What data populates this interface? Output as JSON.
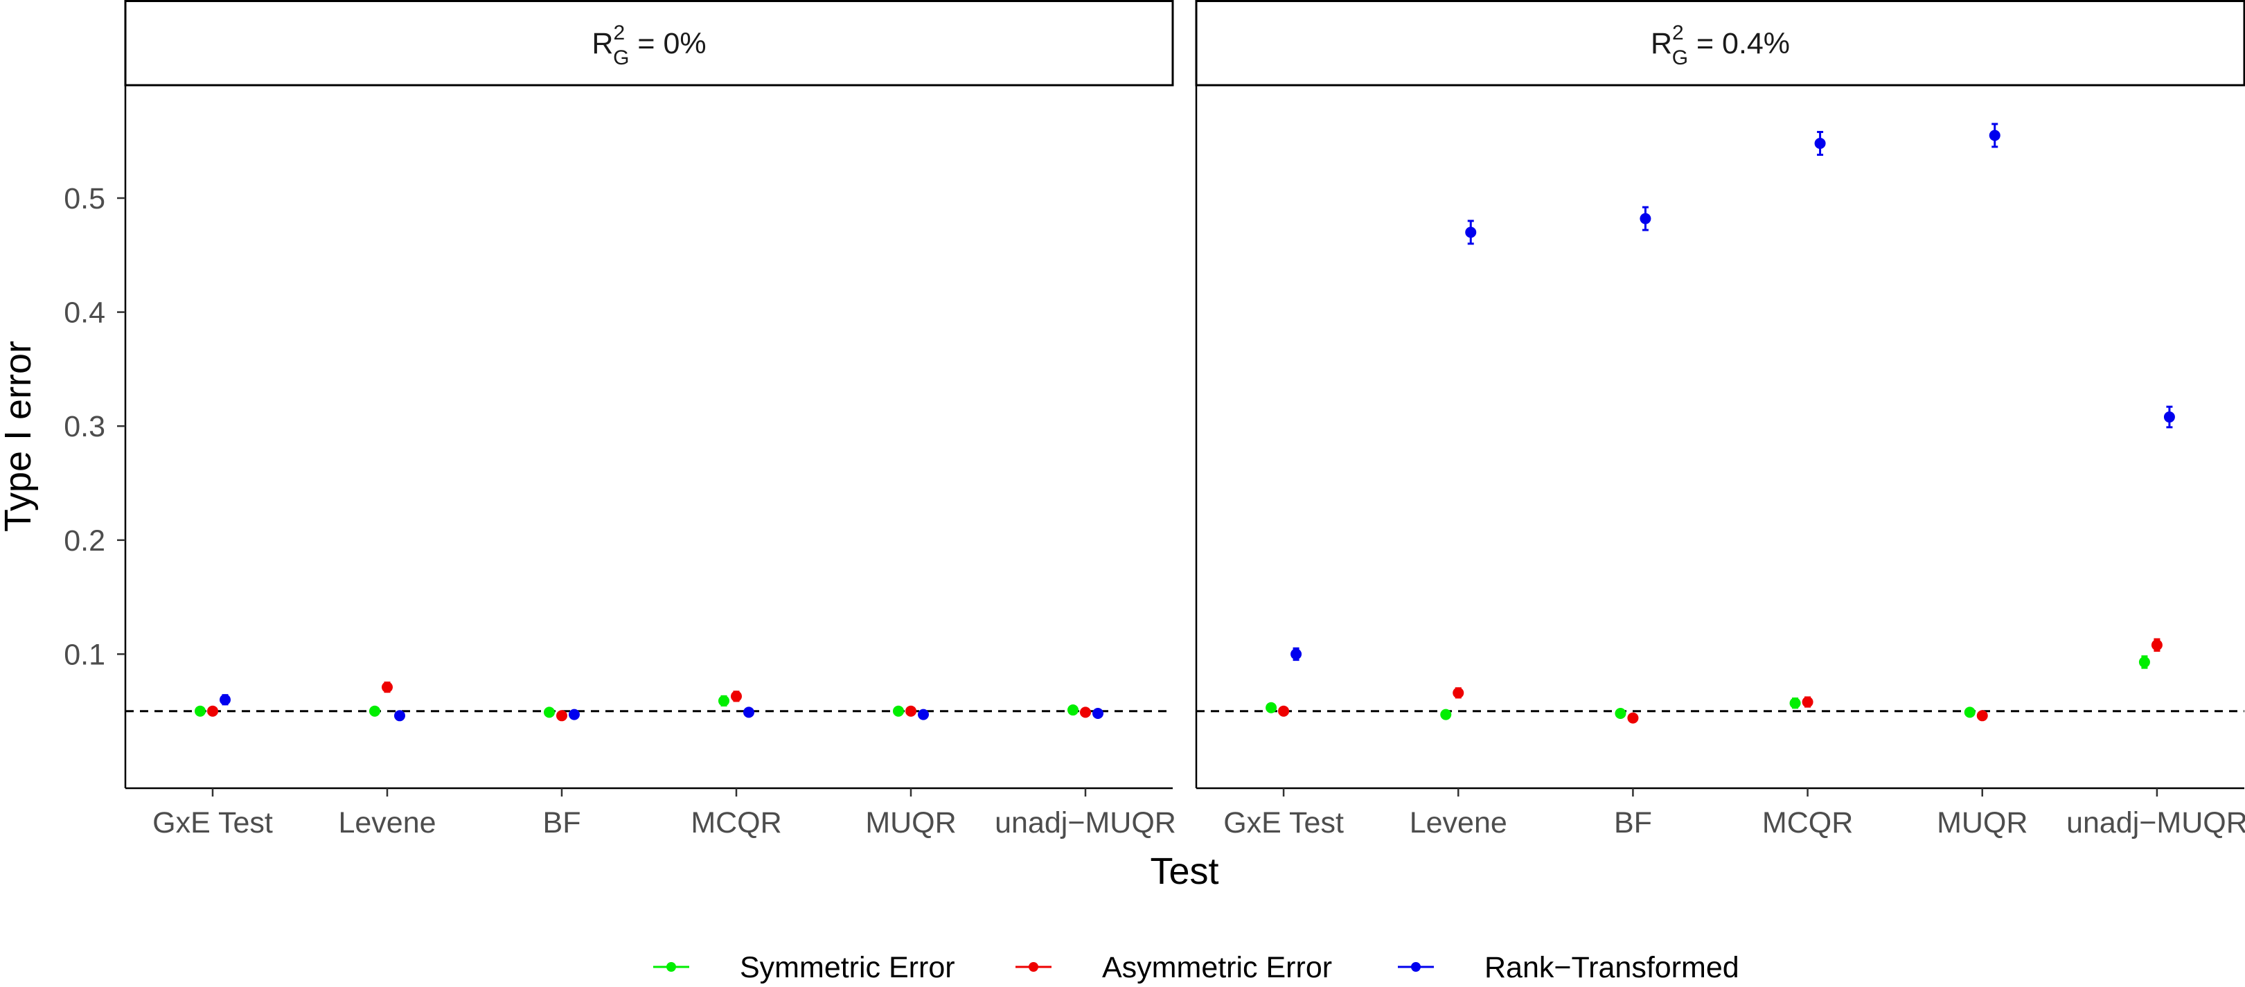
{
  "chart_data": {
    "type": "scatter",
    "subtype": "point-errorbar-facets",
    "xlabel": "Test",
    "ylabel": "Type I error",
    "categories": [
      "GxE Test",
      "Levene",
      "BF",
      "MCQR",
      "MUQR",
      "unadj−MUQR"
    ],
    "ylim": [
      0,
      0.59
    ],
    "yticks": [
      0.1,
      0.2,
      0.3,
      0.4,
      0.5
    ],
    "yticklabels": [
      "0.1",
      "0.2",
      "0.3",
      "0.4",
      "0.5"
    ],
    "reference_line": {
      "y": 0.05,
      "style": "dashed"
    },
    "grid": false,
    "legend": {
      "position": "bottom"
    },
    "series_styles": [
      {
        "name": "Symmetric Error",
        "color": "#00ee00"
      },
      {
        "name": "Asymmetric Error",
        "color": "#ee0000"
      },
      {
        "name": "Rank−Transformed",
        "color": "#0000ee"
      }
    ],
    "facets": [
      {
        "label_base": "R",
        "label_sup": "2",
        "label_sub": "G",
        "label_rest": " = 0%",
        "series": [
          {
            "name": "Symmetric Error",
            "values": [
              0.05,
              0.05,
              0.049,
              0.059,
              0.05,
              0.051
            ],
            "err": [
              0.003,
              0.003,
              0.003,
              0.004,
              0.003,
              0.003
            ]
          },
          {
            "name": "Asymmetric Error",
            "values": [
              0.05,
              0.071,
              0.046,
              0.063,
              0.05,
              0.049
            ],
            "err": [
              0.003,
              0.004,
              0.003,
              0.004,
              0.003,
              0.003
            ]
          },
          {
            "name": "Rank−Transformed",
            "values": [
              0.06,
              0.046,
              0.047,
              0.049,
              0.047,
              0.048
            ],
            "err": [
              0.004,
              0.003,
              0.003,
              0.003,
              0.003,
              0.003
            ]
          }
        ]
      },
      {
        "label_base": "R",
        "label_sup": "2",
        "label_sub": "G",
        "label_rest": " = 0.4%",
        "series": [
          {
            "name": "Symmetric Error",
            "values": [
              0.053,
              0.047,
              0.048,
              0.057,
              0.049,
              0.093
            ],
            "err": [
              0.003,
              0.003,
              0.003,
              0.004,
              0.003,
              0.005
            ]
          },
          {
            "name": "Asymmetric Error",
            "values": [
              0.05,
              0.066,
              0.044,
              0.058,
              0.046,
              0.108
            ],
            "err": [
              0.003,
              0.004,
              0.003,
              0.004,
              0.003,
              0.005
            ]
          },
          {
            "name": "Rank−Transformed",
            "values": [
              0.1,
              0.47,
              0.482,
              0.548,
              0.555,
              0.308
            ],
            "err": [
              0.005,
              0.01,
              0.01,
              0.01,
              0.01,
              0.009
            ]
          }
        ]
      }
    ]
  }
}
